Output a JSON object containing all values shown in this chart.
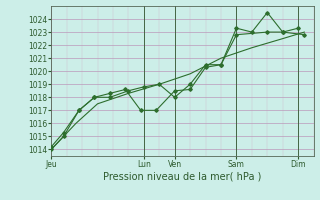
{
  "title": "Pression niveau de la mer( hPa )",
  "bg_color": "#cceee8",
  "grid_major_color": "#bb99bb",
  "grid_minor_color": "#ccbbcc",
  "line_color": "#2d6e2d",
  "vline_color": "#446644",
  "ylim": [
    1013.5,
    1025.0
  ],
  "yticks": [
    1014,
    1015,
    1016,
    1017,
    1018,
    1019,
    1020,
    1021,
    1022,
    1023,
    1024
  ],
  "xtick_labels": [
    "Jeu",
    "",
    "",
    "Lun",
    "Ven",
    "",
    "Sam",
    "",
    "Dim"
  ],
  "xtick_positions": [
    0,
    1,
    2,
    3,
    4,
    5,
    6,
    7,
    8
  ],
  "xlim": [
    0,
    8.5
  ],
  "vline_positions": [
    3.0,
    4.0,
    6.0,
    8.0
  ],
  "show_xtick_labels": [
    "Jeu",
    "Lun",
    "Ven",
    "Sam",
    "Dim"
  ],
  "show_xtick_pos": [
    0,
    3,
    4,
    6,
    8
  ],
  "line1": {
    "x": [
      0,
      0.4,
      0.9,
      1.4,
      1.9,
      2.5,
      3.0,
      3.5,
      4.0,
      4.5,
      5.0,
      5.5,
      6.0,
      6.5,
      7.0,
      7.5,
      8.0
    ],
    "y": [
      1014.0,
      1015.0,
      1017.0,
      1018.0,
      1018.0,
      1018.5,
      1018.8,
      1019.0,
      1018.0,
      1019.0,
      1020.5,
      1020.5,
      1023.3,
      1023.0,
      1024.5,
      1023.0,
      1023.3
    ]
  },
  "line2": {
    "x": [
      0,
      0.4,
      0.9,
      1.4,
      1.9,
      2.4,
      2.9,
      3.4,
      4.0,
      4.5,
      5.0,
      5.5,
      6.0,
      7.0,
      7.5,
      8.2
    ],
    "y": [
      1014.2,
      1015.3,
      1017.0,
      1018.0,
      1018.3,
      1018.6,
      1017.0,
      1017.0,
      1018.5,
      1018.6,
      1020.3,
      1020.5,
      1022.8,
      1023.0,
      1023.0,
      1022.8
    ]
  },
  "line3": {
    "x": [
      0,
      0.8,
      1.5,
      2.5,
      3.5,
      4.5,
      5.5,
      6.5,
      7.5,
      8.2
    ],
    "y": [
      1014.0,
      1016.0,
      1017.5,
      1018.3,
      1019.0,
      1019.8,
      1021.0,
      1021.8,
      1022.5,
      1023.0
    ]
  },
  "ylabel_fontsize": 5.5,
  "xlabel_fontsize": 7.0,
  "tick_label_fontsize": 5.5
}
